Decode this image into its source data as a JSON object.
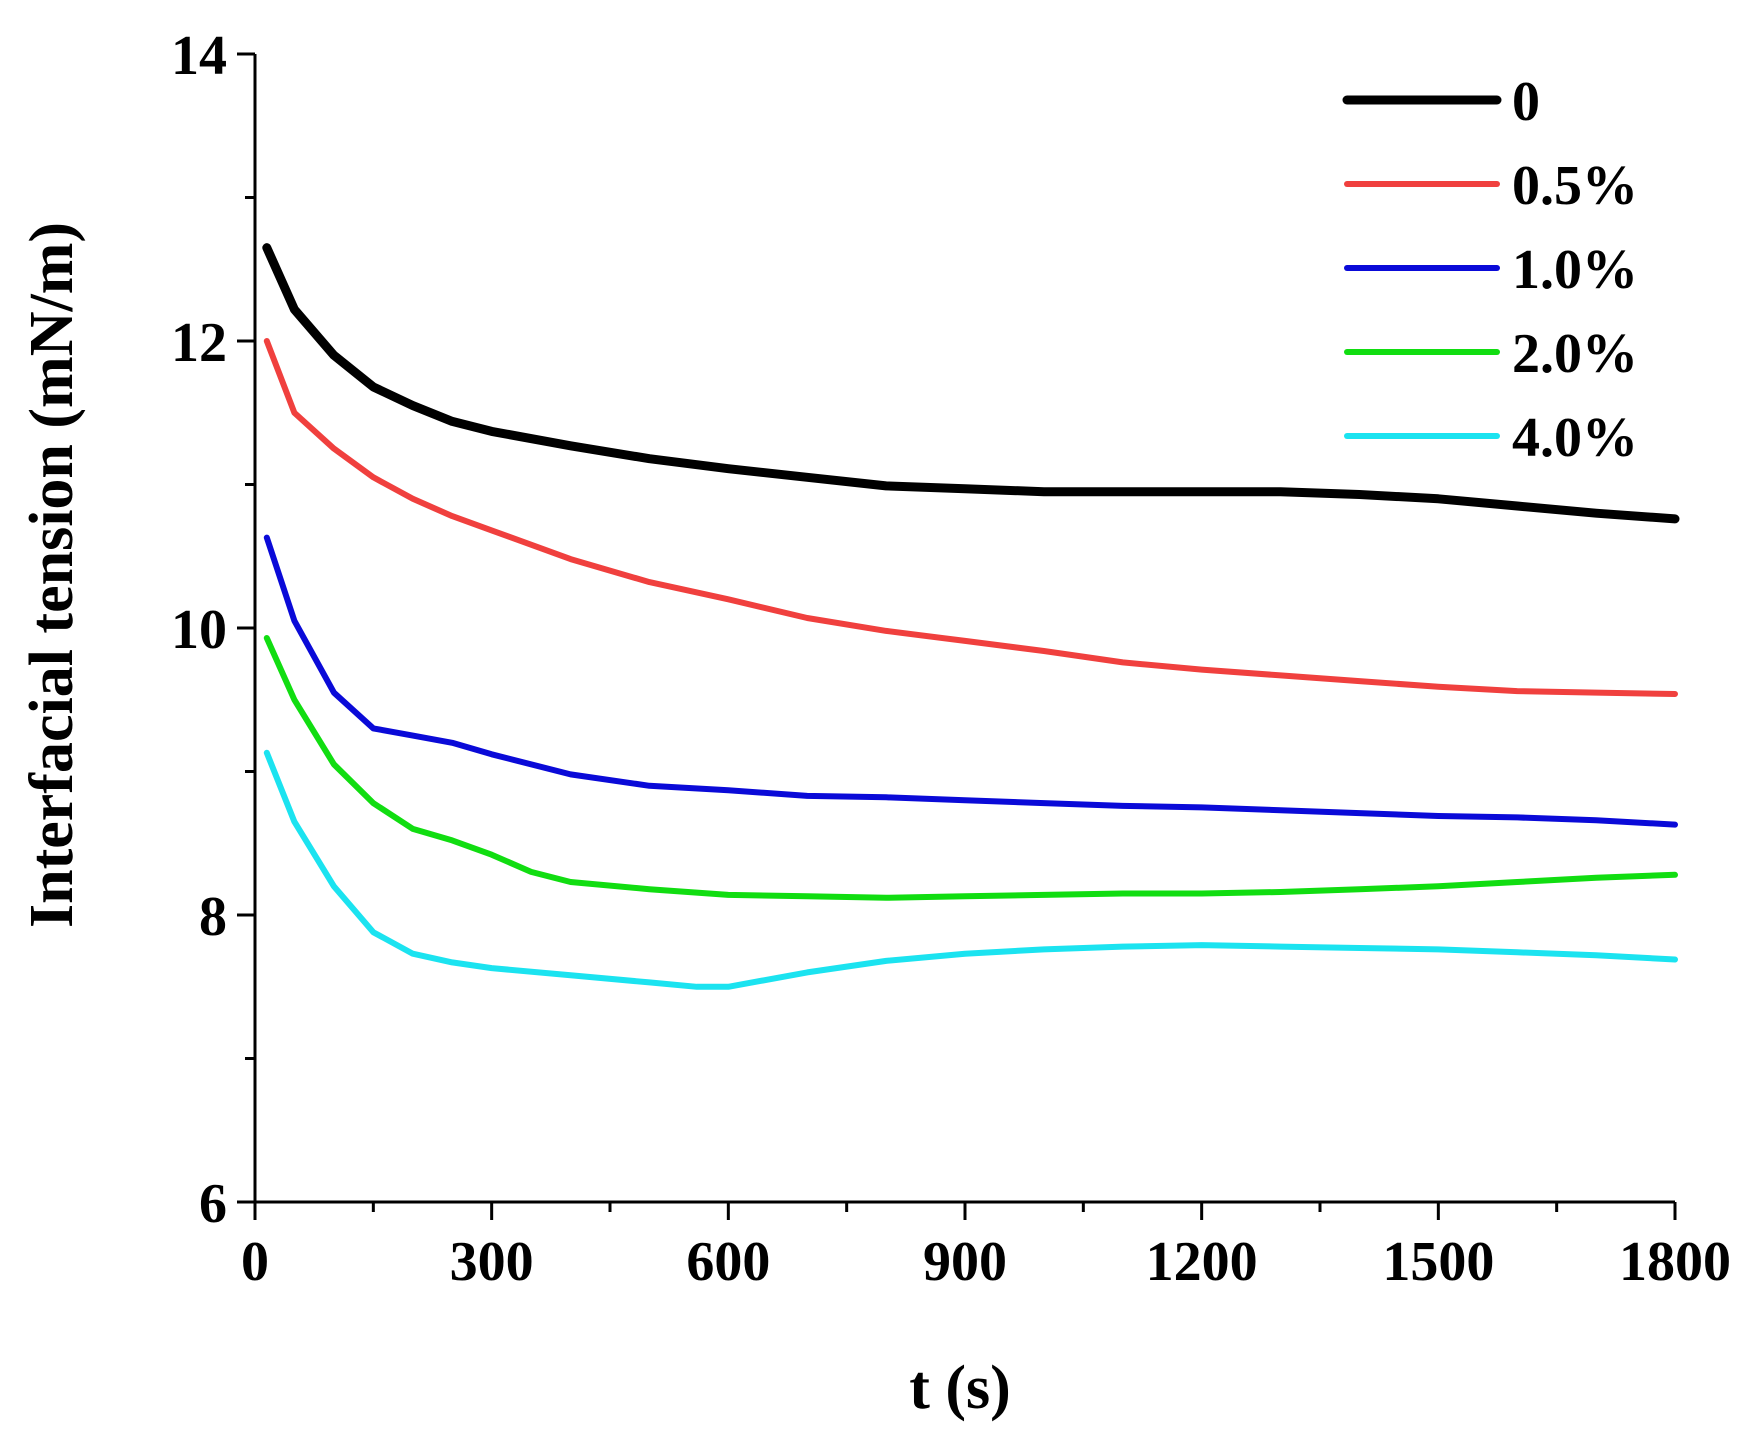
{
  "chart_data": {
    "type": "line",
    "title": "",
    "xlabel": "t (s)",
    "ylabel": "Interfacial tension (mN/m)",
    "xlim": [
      0,
      1800
    ],
    "ylim": [
      6,
      14
    ],
    "x_ticks": [
      0,
      300,
      600,
      900,
      1200,
      1500,
      1800
    ],
    "x_tick_labels": [
      "0",
      "300",
      "600",
      "900",
      "1200",
      "1500",
      "1800"
    ],
    "y_ticks": [
      6,
      8,
      10,
      12,
      14
    ],
    "y_tick_labels": [
      "6",
      "8",
      "10",
      "12",
      "14"
    ],
    "legend_position": "top-right",
    "series": [
      {
        "name": "0",
        "color": "#000000",
        "x": [
          15,
          50,
          100,
          150,
          200,
          250,
          300,
          400,
          500,
          600,
          700,
          800,
          900,
          1000,
          1100,
          1200,
          1300,
          1400,
          1500,
          1600,
          1700,
          1800
        ],
        "y": [
          12.65,
          12.22,
          11.9,
          11.68,
          11.55,
          11.44,
          11.37,
          11.27,
          11.18,
          11.11,
          11.05,
          10.99,
          10.97,
          10.95,
          10.95,
          10.95,
          10.95,
          10.93,
          10.9,
          10.85,
          10.8,
          10.76
        ]
      },
      {
        "name": "0.5%",
        "color": "#f0403e",
        "x": [
          15,
          50,
          100,
          150,
          200,
          250,
          300,
          400,
          500,
          600,
          700,
          800,
          900,
          1000,
          1100,
          1200,
          1300,
          1400,
          1500,
          1600,
          1700,
          1800
        ],
        "y": [
          12.0,
          11.5,
          11.25,
          11.05,
          10.9,
          10.78,
          10.68,
          10.48,
          10.32,
          10.2,
          10.07,
          9.98,
          9.91,
          9.84,
          9.76,
          9.71,
          9.67,
          9.63,
          9.59,
          9.56,
          9.55,
          9.54
        ]
      },
      {
        "name": "1.0%",
        "color": "#0a0ad8",
        "x": [
          15,
          50,
          100,
          150,
          200,
          250,
          300,
          400,
          500,
          600,
          700,
          800,
          900,
          1000,
          1100,
          1200,
          1300,
          1400,
          1500,
          1600,
          1700,
          1800
        ],
        "y": [
          10.63,
          10.05,
          9.55,
          9.3,
          9.25,
          9.2,
          9.12,
          8.98,
          8.9,
          8.87,
          8.83,
          8.82,
          8.8,
          8.78,
          8.76,
          8.75,
          8.73,
          8.71,
          8.69,
          8.68,
          8.66,
          8.63
        ]
      },
      {
        "name": "2.0%",
        "color": "#11dd11",
        "x": [
          15,
          50,
          100,
          150,
          200,
          250,
          300,
          350,
          400,
          500,
          600,
          700,
          800,
          900,
          1000,
          1100,
          1200,
          1300,
          1400,
          1500,
          1600,
          1700,
          1800
        ],
        "y": [
          9.93,
          9.5,
          9.05,
          8.78,
          8.6,
          8.52,
          8.42,
          8.3,
          8.23,
          8.18,
          8.14,
          8.13,
          8.12,
          8.13,
          8.14,
          8.15,
          8.15,
          8.16,
          8.18,
          8.2,
          8.23,
          8.26,
          8.28
        ]
      },
      {
        "name": "4.0%",
        "color": "#1be3f0",
        "x": [
          15,
          50,
          100,
          150,
          200,
          250,
          300,
          400,
          500,
          560,
          600,
          700,
          800,
          900,
          1000,
          1100,
          1200,
          1300,
          1400,
          1500,
          1600,
          1700,
          1800
        ],
        "y": [
          9.13,
          8.65,
          8.2,
          7.88,
          7.73,
          7.67,
          7.63,
          7.58,
          7.53,
          7.5,
          7.5,
          7.6,
          7.68,
          7.73,
          7.76,
          7.78,
          7.79,
          7.78,
          7.77,
          7.76,
          7.74,
          7.72,
          7.69
        ]
      }
    ]
  }
}
